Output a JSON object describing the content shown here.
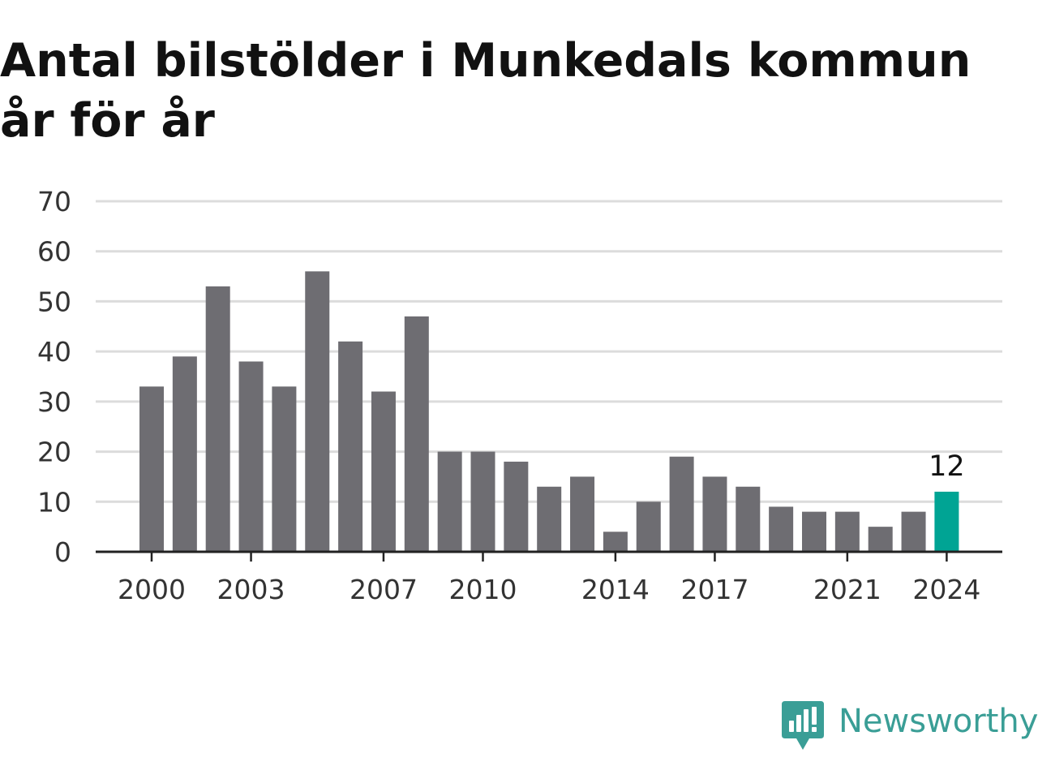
{
  "title": "Antal bilstölder i Munkedals kommun år för år",
  "brand": {
    "name": "Newsworthy",
    "icon": "newsworthy-logo-icon",
    "color": "#3a9e96"
  },
  "colors": {
    "bar": "#6e6d72",
    "highlight": "#00a494",
    "grid": "#dcdcdc",
    "axis": "#222222"
  },
  "chart_data": {
    "type": "bar",
    "title": "Antal bilstölder i Munkedals kommun år för år",
    "xlabel": "",
    "ylabel": "",
    "categories": [
      "2000",
      "2001",
      "2002",
      "2003",
      "2004",
      "2005",
      "2006",
      "2007",
      "2008",
      "2009",
      "2010",
      "2011",
      "2012",
      "2013",
      "2014",
      "2015",
      "2016",
      "2017",
      "2018",
      "2019",
      "2020",
      "2021",
      "2022",
      "2023",
      "2024"
    ],
    "values": [
      33,
      39,
      53,
      38,
      33,
      56,
      42,
      32,
      47,
      20,
      20,
      18,
      13,
      15,
      4,
      10,
      19,
      15,
      13,
      9,
      8,
      8,
      5,
      8,
      12
    ],
    "ylim": [
      0,
      70
    ],
    "yticks": [
      0,
      10,
      20,
      30,
      40,
      50,
      60,
      70
    ],
    "xticks": [
      "2000",
      "2003",
      "2007",
      "2010",
      "2014",
      "2017",
      "2021",
      "2024"
    ],
    "grid": true,
    "highlight_category": "2024",
    "data_labels": [
      {
        "category": "2024",
        "text": "12"
      }
    ]
  }
}
